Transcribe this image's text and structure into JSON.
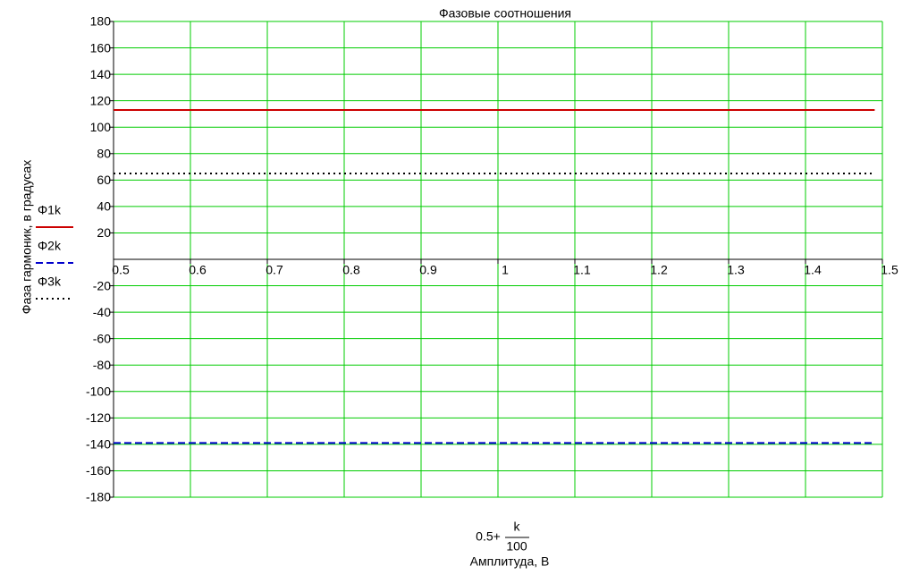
{
  "chart_data": {
    "type": "line",
    "title": "Фазовые соотношения",
    "ylabel": "Фаза гармоник, в градусах",
    "xlabel": "Амплитуда, В",
    "xlabel_expression": {
      "prefix": "0.5+",
      "numerator": "k",
      "denominator": "100"
    },
    "x": [
      0.5,
      1.49
    ],
    "series": [
      {
        "name": "Φ1k",
        "color": "#cc0000",
        "style": "solid",
        "values": [
          113,
          113
        ]
      },
      {
        "name": "Φ2k",
        "color": "#0000cc",
        "style": "dashed",
        "values": [
          -139,
          -139
        ]
      },
      {
        "name": "Φ3k",
        "color": "#000000",
        "style": "dotted",
        "values": [
          65,
          65
        ]
      }
    ],
    "xlim": [
      0.5,
      1.5
    ],
    "xticks": [
      0.5,
      0.6,
      0.7,
      0.8,
      0.9,
      1,
      1.1,
      1.2,
      1.3,
      1.4,
      1.5
    ],
    "ylim": [
      -180,
      180
    ],
    "yticks": [
      180,
      160,
      140,
      120,
      100,
      80,
      60,
      40,
      20,
      -20,
      -40,
      -60,
      -80,
      -100,
      -120,
      -140,
      -160,
      -180
    ],
    "grid": true,
    "grid_color": "#00cc00"
  }
}
